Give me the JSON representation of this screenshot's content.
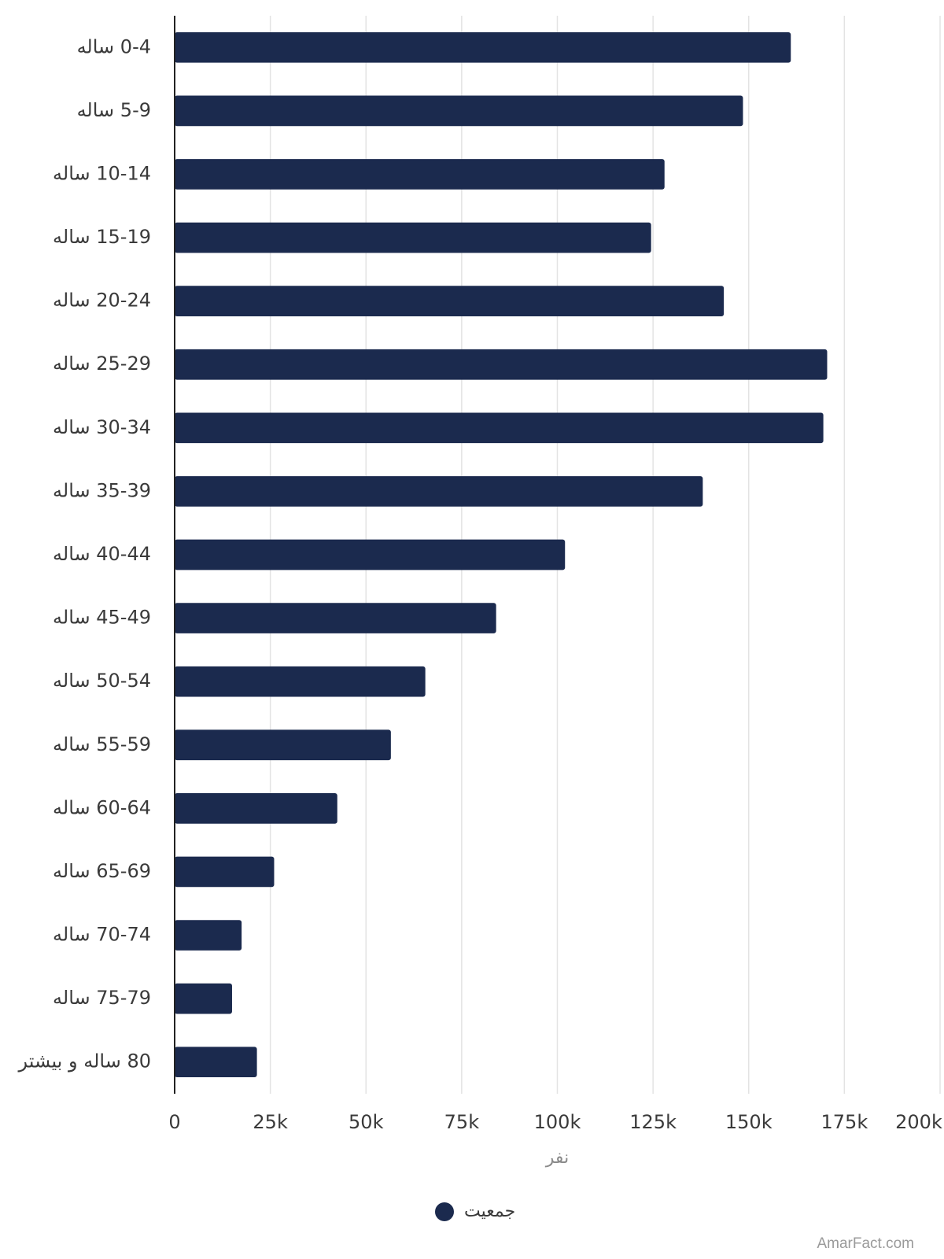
{
  "chart_data": {
    "type": "bar",
    "orientation": "horizontal",
    "categories": [
      "0-4 ساله",
      "5-9 ساله",
      "10-14 ساله",
      "15-19 ساله",
      "20-24 ساله",
      "25-29 ساله",
      "30-34 ساله",
      "35-39 ساله",
      "40-44 ساله",
      "45-49 ساله",
      "50-54 ساله",
      "55-59 ساله",
      "60-64 ساله",
      "65-69 ساله",
      "70-74 ساله",
      "75-79 ساله",
      "80 ساله و بیشتر"
    ],
    "series": [
      {
        "name": "جمعیت",
        "color": "#1b2a4e",
        "values": [
          161000,
          148500,
          128000,
          124500,
          143500,
          170500,
          169500,
          138000,
          102000,
          84000,
          65500,
          56500,
          42500,
          26000,
          17500,
          15000,
          21500
        ]
      }
    ],
    "xlabel": "نفر",
    "xlim": [
      0,
      200000
    ],
    "xticks": [
      {
        "value": 0,
        "label": "0"
      },
      {
        "value": 25000,
        "label": "25k"
      },
      {
        "value": 50000,
        "label": "50k"
      },
      {
        "value": 75000,
        "label": "75k"
      },
      {
        "value": 100000,
        "label": "100k"
      },
      {
        "value": 125000,
        "label": "125k"
      },
      {
        "value": 150000,
        "label": "150k"
      },
      {
        "value": 175000,
        "label": "175k"
      },
      {
        "value": 200000,
        "label": "200k"
      }
    ],
    "grid": true,
    "legend_position": "bottom-center"
  },
  "watermark": "AmarFact.com"
}
